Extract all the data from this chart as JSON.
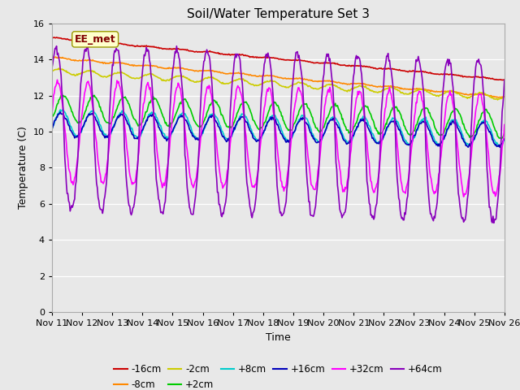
{
  "title": "Soil/Water Temperature Set 3",
  "xlabel": "Time",
  "ylabel": "Temperature (C)",
  "ylim": [
    0,
    16
  ],
  "yticks": [
    0,
    2,
    4,
    6,
    8,
    10,
    12,
    14,
    16
  ],
  "xtick_labels": [
    "Nov 11",
    "Nov 12",
    "Nov 13",
    "Nov 14",
    "Nov 15",
    "Nov 16",
    "Nov 17",
    "Nov 18",
    "Nov 19",
    "Nov 20",
    "Nov 21",
    "Nov 22",
    "Nov 23",
    "Nov 24",
    "Nov 25",
    "Nov 26"
  ],
  "annotation_text": "EE_met",
  "legend_entries": [
    {
      "label": "-16cm",
      "color": "#cc0000"
    },
    {
      "label": "-8cm",
      "color": "#ff8800"
    },
    {
      "label": "-2cm",
      "color": "#cccc00"
    },
    {
      "label": "+2cm",
      "color": "#00cc00"
    },
    {
      "label": "+8cm",
      "color": "#00cccc"
    },
    {
      "label": "+16cm",
      "color": "#0000bb"
    },
    {
      "label": "+32cm",
      "color": "#ff00ff"
    },
    {
      "label": "+64cm",
      "color": "#8800bb"
    }
  ],
  "bg_color": "#e8e8e8",
  "title_fontsize": 11,
  "label_fontsize": 9,
  "tick_fontsize": 8
}
